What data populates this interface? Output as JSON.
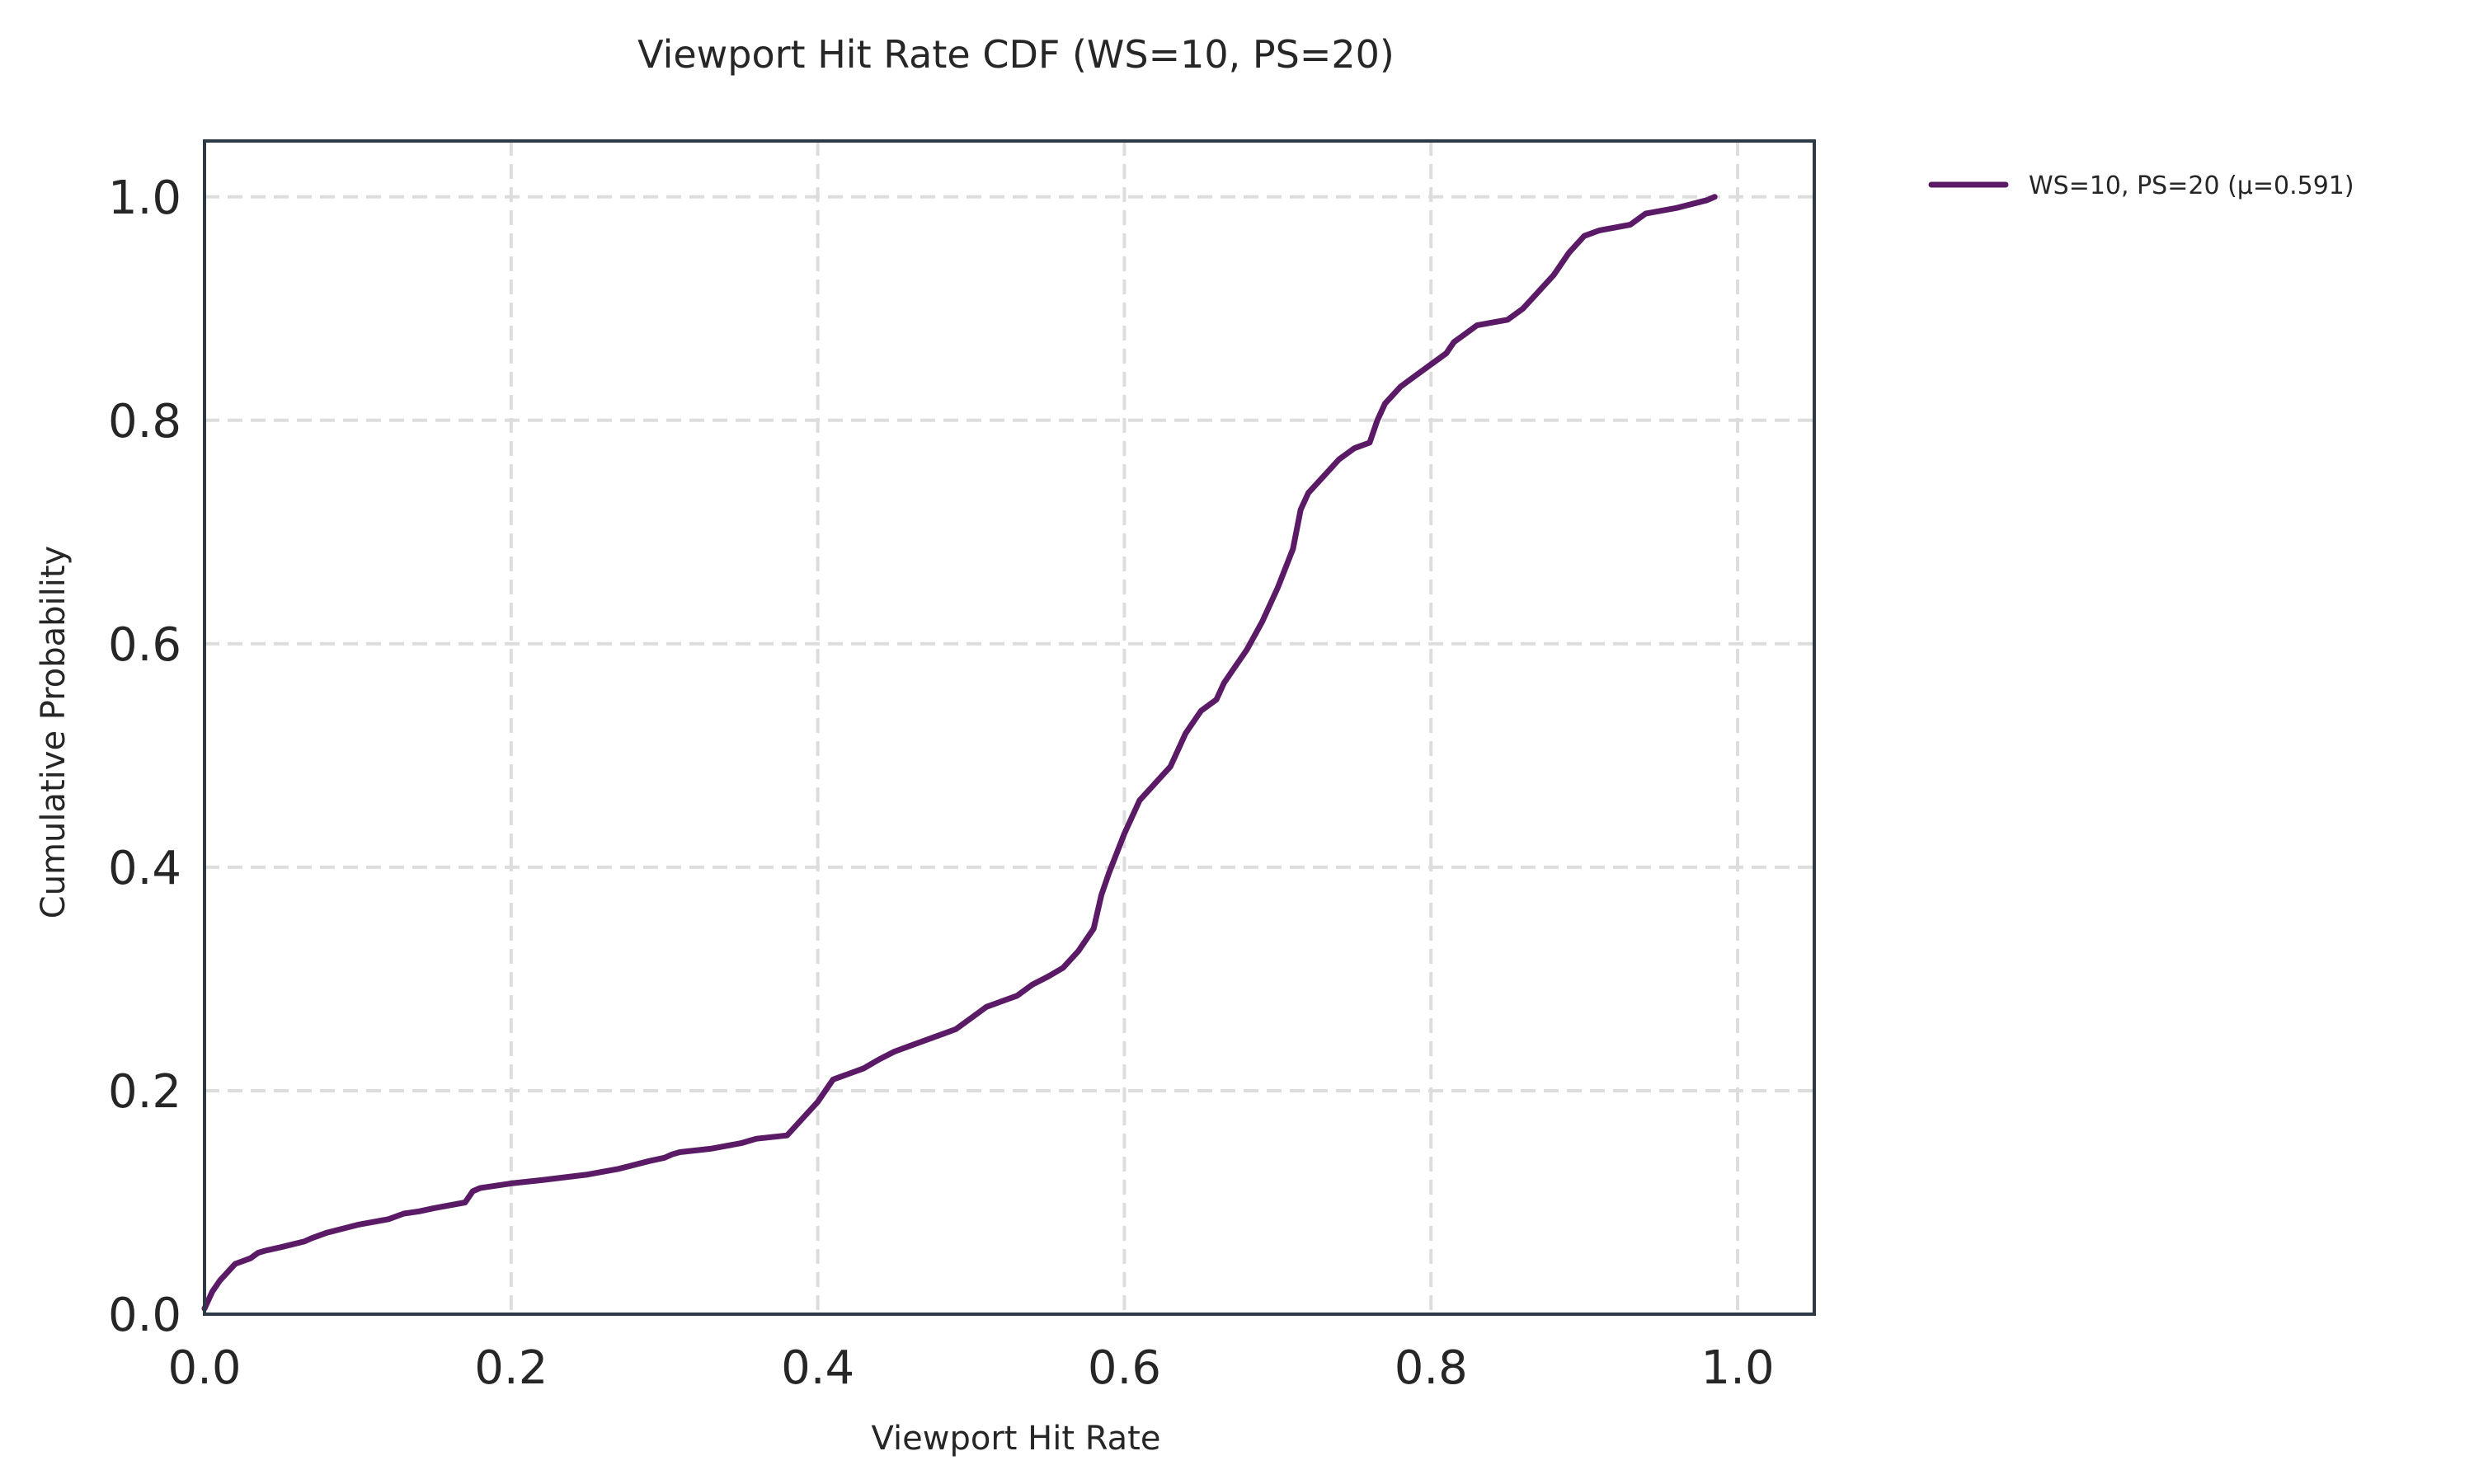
{
  "chart_data": {
    "type": "line",
    "title": "Viewport Hit Rate CDF (WS=10, PS=20)",
    "xlabel": "Viewport Hit Rate",
    "ylabel": "Cumulative Probability",
    "xlim": [
      0.0,
      1.05
    ],
    "ylim": [
      0.0,
      1.05
    ],
    "xticks": [
      0.0,
      0.2,
      0.4,
      0.6,
      0.8,
      1.0
    ],
    "xtick_labels": [
      "0.0",
      "0.2",
      "0.4",
      "0.6",
      "0.8",
      "1.0"
    ],
    "yticks": [
      0.0,
      0.2,
      0.4,
      0.6,
      0.8,
      1.0
    ],
    "ytick_labels": [
      "0.0",
      "0.2",
      "0.4",
      "0.6",
      "0.8",
      "1.0"
    ],
    "grid": true,
    "legend_position": "outside-top-right",
    "series": [
      {
        "name": "WS=10, PS=20 (μ=0.591)",
        "color": "#5b1a66",
        "x": [
          0.0,
          0.005,
          0.01,
          0.02,
          0.03,
          0.035,
          0.04,
          0.05,
          0.065,
          0.07,
          0.08,
          0.1,
          0.12,
          0.13,
          0.14,
          0.15,
          0.17,
          0.175,
          0.18,
          0.2,
          0.22,
          0.25,
          0.27,
          0.29,
          0.3,
          0.305,
          0.31,
          0.33,
          0.35,
          0.355,
          0.36,
          0.38,
          0.39,
          0.4,
          0.41,
          0.42,
          0.43,
          0.44,
          0.45,
          0.46,
          0.48,
          0.49,
          0.5,
          0.51,
          0.52,
          0.53,
          0.54,
          0.55,
          0.56,
          0.57,
          0.58,
          0.585,
          0.59,
          0.6,
          0.61,
          0.62,
          0.63,
          0.64,
          0.645,
          0.65,
          0.66,
          0.665,
          0.67,
          0.675,
          0.68,
          0.69,
          0.7,
          0.71,
          0.715,
          0.72,
          0.73,
          0.74,
          0.75,
          0.76,
          0.765,
          0.77,
          0.78,
          0.79,
          0.8,
          0.81,
          0.815,
          0.82,
          0.83,
          0.85,
          0.86,
          0.87,
          0.88,
          0.89,
          0.9,
          0.91,
          0.93,
          0.94,
          0.96,
          0.98,
          0.985
        ],
        "y": [
          0.005,
          0.02,
          0.03,
          0.045,
          0.05,
          0.055,
          0.057,
          0.06,
          0.065,
          0.068,
          0.073,
          0.08,
          0.085,
          0.09,
          0.092,
          0.095,
          0.1,
          0.11,
          0.113,
          0.117,
          0.12,
          0.125,
          0.13,
          0.137,
          0.14,
          0.143,
          0.145,
          0.148,
          0.153,
          0.155,
          0.157,
          0.16,
          0.175,
          0.19,
          0.21,
          0.215,
          0.22,
          0.228,
          0.235,
          0.24,
          0.25,
          0.255,
          0.265,
          0.275,
          0.28,
          0.285,
          0.295,
          0.302,
          0.31,
          0.325,
          0.345,
          0.375,
          0.395,
          0.43,
          0.46,
          0.475,
          0.49,
          0.52,
          0.53,
          0.54,
          0.55,
          0.565,
          0.575,
          0.585,
          0.595,
          0.62,
          0.65,
          0.685,
          0.72,
          0.735,
          0.75,
          0.765,
          0.775,
          0.78,
          0.8,
          0.815,
          0.83,
          0.84,
          0.85,
          0.86,
          0.87,
          0.875,
          0.885,
          0.89,
          0.9,
          0.915,
          0.93,
          0.95,
          0.965,
          0.97,
          0.975,
          0.985,
          0.99,
          0.997,
          1.0
        ]
      }
    ]
  }
}
